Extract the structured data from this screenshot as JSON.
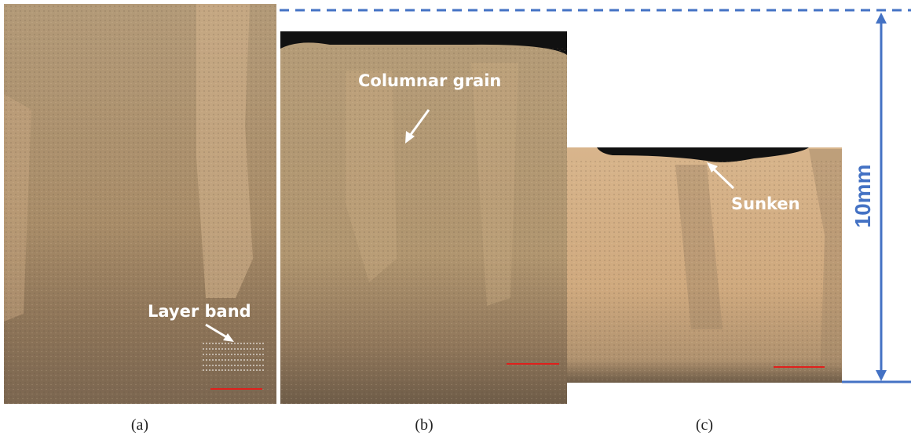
{
  "figure": {
    "panels": [
      {
        "label": "(a)",
        "annotation": "Layer band"
      },
      {
        "label": "(b)",
        "annotation": "Columnar grain"
      },
      {
        "label": "(c)",
        "annotation": "Sunken"
      }
    ],
    "height_label": "10mm"
  }
}
